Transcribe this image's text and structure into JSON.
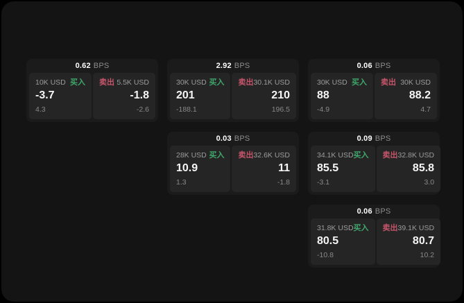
{
  "labels": {
    "bps_unit": "BPS",
    "buy": "买入",
    "sell": "卖出"
  },
  "colors": {
    "background": "#141414",
    "card": "#1b1b1b",
    "panel": "#252525",
    "buy": "#3fa76b",
    "sell": "#c5556a"
  },
  "cards": [
    {
      "spread_bps": "0.62",
      "buy": {
        "amount": "10K USD",
        "price": "-3.7",
        "delta": "4.3"
      },
      "sell": {
        "amount": "5.5K USD",
        "price": "-1.8",
        "delta": "-2.6"
      }
    },
    {
      "spread_bps": "2.92",
      "buy": {
        "amount": "30K USD",
        "price": "201",
        "delta": "-188.1"
      },
      "sell": {
        "amount": "30.1K USD",
        "price": "210",
        "delta": "196.5"
      }
    },
    {
      "spread_bps": "0.06",
      "buy": {
        "amount": "30K USD",
        "price": "88",
        "delta": "-4.9"
      },
      "sell": {
        "amount": "30K USD",
        "price": "88.2",
        "delta": "4.7"
      }
    },
    {
      "spread_bps": "0.03",
      "buy": {
        "amount": "28K USD",
        "price": "10.9",
        "delta": "1.3"
      },
      "sell": {
        "amount": "32.6K USD",
        "price": "11",
        "delta": "-1.8"
      }
    },
    {
      "spread_bps": "0.09",
      "buy": {
        "amount": "34.1K USD",
        "price": "85.5",
        "delta": "-3.1"
      },
      "sell": {
        "amount": "32.8K USD",
        "price": "85.8",
        "delta": "3.0"
      }
    },
    {
      "spread_bps": "0.06",
      "buy": {
        "amount": "31.8K USD",
        "price": "80.5",
        "delta": "-10.8"
      },
      "sell": {
        "amount": "39.1K USD",
        "price": "80.7",
        "delta": "10.2"
      }
    }
  ]
}
